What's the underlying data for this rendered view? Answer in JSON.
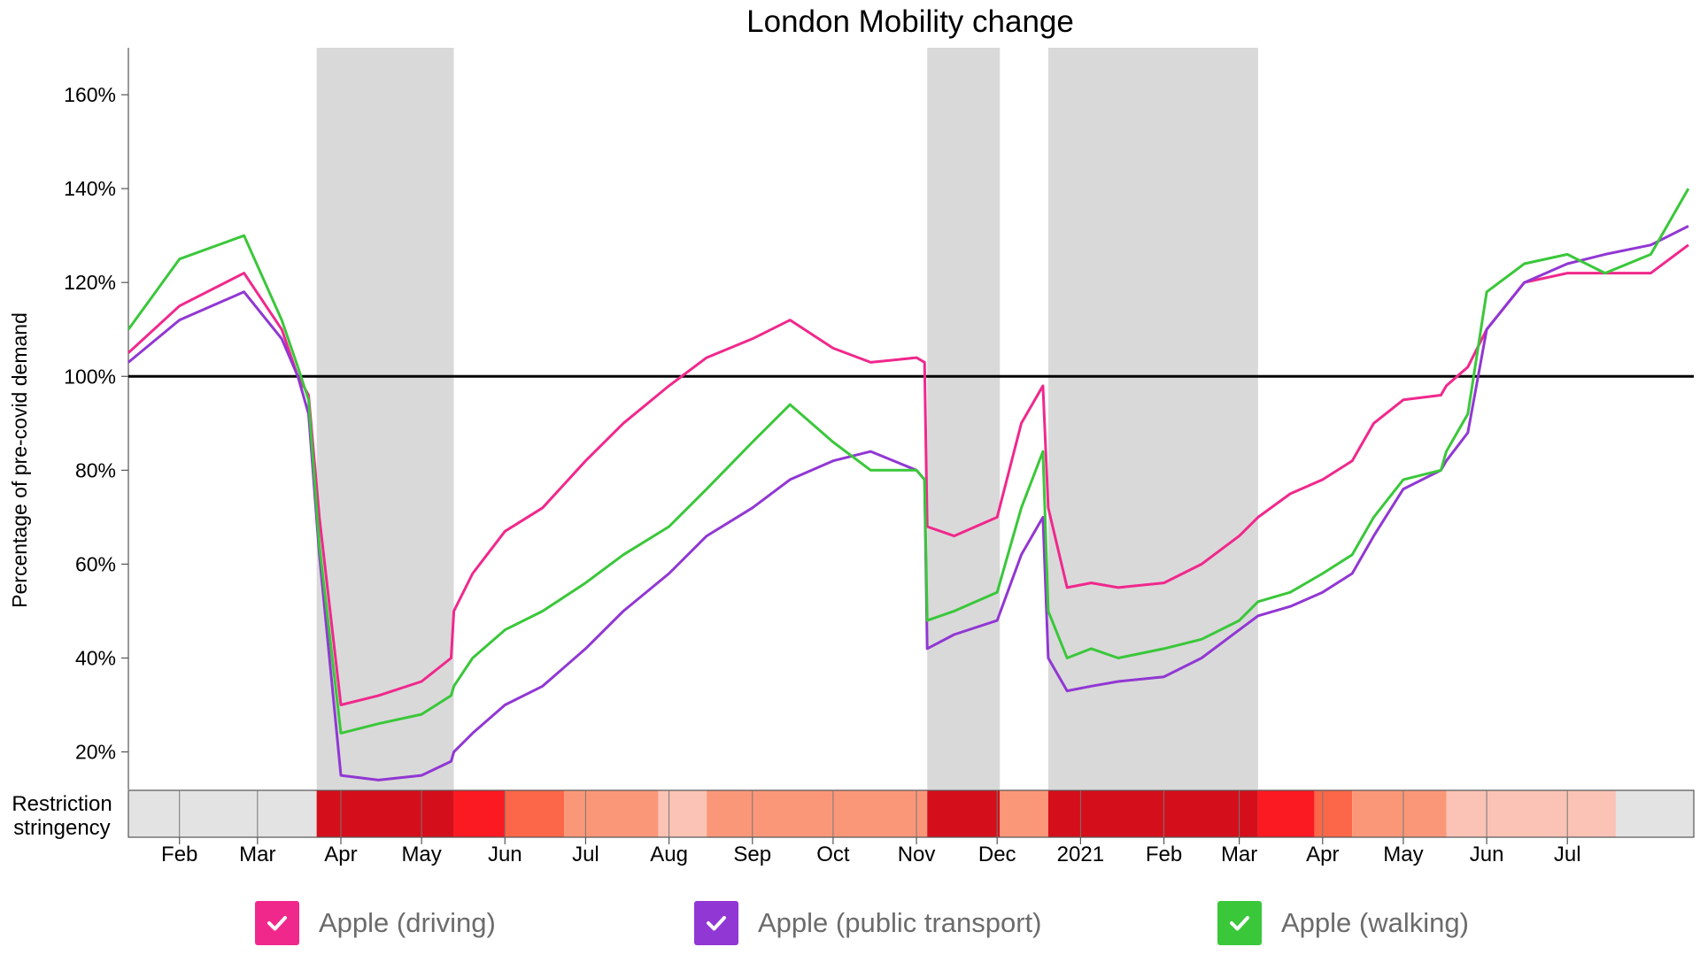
{
  "colors": {
    "driving": "#f0288c",
    "transit": "#9137d3",
    "walking": "#3ac73a",
    "lockdown_shade": "#d9d9d9",
    "baseline": "#000000",
    "stringency_levels": [
      "#e3e3e3",
      "#fbc3b5",
      "#fb9779",
      "#fb6748",
      "#fb1a22",
      "#d40f1b"
    ]
  },
  "chart_data": {
    "type": "line",
    "title": "London Mobility change",
    "ylabel": "Percentage of pre-covid demand",
    "ylim": [
      12,
      170
    ],
    "yticks": [
      20,
      40,
      60,
      80,
      100,
      120,
      140,
      160
    ],
    "ytick_labels": [
      "20%",
      "40%",
      "60%",
      "80%",
      "100%",
      "120%",
      "140%",
      "160%"
    ],
    "baseline": 100,
    "xlim": [
      "2020-01-13",
      "2021-08-17"
    ],
    "xtick_labels": [
      {
        "date": "2020-02-01",
        "label": "Feb"
      },
      {
        "date": "2020-03-01",
        "label": "Mar"
      },
      {
        "date": "2020-04-01",
        "label": "Apr"
      },
      {
        "date": "2020-05-01",
        "label": "May"
      },
      {
        "date": "2020-06-01",
        "label": "Jun"
      },
      {
        "date": "2020-07-01",
        "label": "Jul"
      },
      {
        "date": "2020-08-01",
        "label": "Aug"
      },
      {
        "date": "2020-09-01",
        "label": "Sep"
      },
      {
        "date": "2020-10-01",
        "label": "Oct"
      },
      {
        "date": "2020-11-01",
        "label": "Nov"
      },
      {
        "date": "2020-12-01",
        "label": "Dec"
      },
      {
        "date": "2021-01-01",
        "label": "2021"
      },
      {
        "date": "2021-02-01",
        "label": "Feb"
      },
      {
        "date": "2021-03-01",
        "label": "Mar"
      },
      {
        "date": "2021-04-01",
        "label": "Apr"
      },
      {
        "date": "2021-05-01",
        "label": "May"
      },
      {
        "date": "2021-06-01",
        "label": "Jun"
      },
      {
        "date": "2021-07-01",
        "label": "Jul"
      }
    ],
    "lockdowns": [
      {
        "start": "2020-03-23",
        "end": "2020-05-13"
      },
      {
        "start": "2020-11-05",
        "end": "2020-12-02"
      },
      {
        "start": "2020-12-20",
        "end": "2021-03-08"
      }
    ],
    "stringency_label": [
      "Restriction",
      "stringency"
    ],
    "stringency": [
      {
        "start": "2020-01-13",
        "end": "2020-03-23",
        "level": 0
      },
      {
        "start": "2020-03-23",
        "end": "2020-05-13",
        "level": 5
      },
      {
        "start": "2020-05-13",
        "end": "2020-06-01",
        "level": 4
      },
      {
        "start": "2020-06-01",
        "end": "2020-06-23",
        "level": 3
      },
      {
        "start": "2020-06-23",
        "end": "2020-07-28",
        "level": 2
      },
      {
        "start": "2020-07-28",
        "end": "2020-08-15",
        "level": 1
      },
      {
        "start": "2020-08-15",
        "end": "2020-11-05",
        "level": 2
      },
      {
        "start": "2020-11-05",
        "end": "2020-12-02",
        "level": 5
      },
      {
        "start": "2020-12-02",
        "end": "2020-12-20",
        "level": 2
      },
      {
        "start": "2020-12-20",
        "end": "2021-03-08",
        "level": 5
      },
      {
        "start": "2021-03-08",
        "end": "2021-03-29",
        "level": 4
      },
      {
        "start": "2021-03-29",
        "end": "2021-04-12",
        "level": 3
      },
      {
        "start": "2021-04-12",
        "end": "2021-05-17",
        "level": 2
      },
      {
        "start": "2021-05-17",
        "end": "2021-07-19",
        "level": 1
      },
      {
        "start": "2021-07-19",
        "end": "2021-08-17",
        "level": 0
      }
    ],
    "series": [
      {
        "name": "Apple (driving)",
        "key": "driving",
        "x": [
          "2020-01-13",
          "2020-02-01",
          "2020-02-25",
          "2020-03-10",
          "2020-03-16",
          "2020-03-20",
          "2020-03-24",
          "2020-04-01",
          "2020-04-15",
          "2020-05-01",
          "2020-05-12",
          "2020-05-13",
          "2020-05-20",
          "2020-06-01",
          "2020-06-15",
          "2020-07-01",
          "2020-07-15",
          "2020-08-01",
          "2020-08-15",
          "2020-09-01",
          "2020-09-15",
          "2020-10-01",
          "2020-10-15",
          "2020-11-01",
          "2020-11-04",
          "2020-11-05",
          "2020-11-15",
          "2020-12-01",
          "2020-12-10",
          "2020-12-18",
          "2020-12-20",
          "2020-12-27",
          "2021-01-05",
          "2021-01-15",
          "2021-02-01",
          "2021-02-15",
          "2021-03-01",
          "2021-03-08",
          "2021-03-20",
          "2021-04-01",
          "2021-04-12",
          "2021-04-20",
          "2021-05-01",
          "2021-05-15",
          "2021-05-17",
          "2021-05-25",
          "2021-06-01",
          "2021-06-15",
          "2021-07-01",
          "2021-07-15",
          "2021-08-01",
          "2021-08-15"
        ],
        "y": [
          105,
          115,
          122,
          110,
          100,
          96,
          70,
          30,
          32,
          35,
          40,
          50,
          58,
          67,
          72,
          82,
          90,
          98,
          104,
          108,
          112,
          106,
          103,
          104,
          103,
          68,
          66,
          70,
          90,
          98,
          72,
          55,
          56,
          55,
          56,
          60,
          66,
          70,
          75,
          78,
          82,
          90,
          95,
          96,
          98,
          102,
          110,
          120,
          122,
          122,
          122,
          128
        ]
      },
      {
        "name": "Apple (public transport)",
        "key": "transit",
        "x": [
          "2020-01-13",
          "2020-02-01",
          "2020-02-25",
          "2020-03-10",
          "2020-03-16",
          "2020-03-20",
          "2020-03-24",
          "2020-04-01",
          "2020-04-15",
          "2020-05-01",
          "2020-05-12",
          "2020-05-13",
          "2020-05-20",
          "2020-06-01",
          "2020-06-15",
          "2020-07-01",
          "2020-07-15",
          "2020-08-01",
          "2020-08-15",
          "2020-09-01",
          "2020-09-15",
          "2020-10-01",
          "2020-10-15",
          "2020-11-01",
          "2020-11-04",
          "2020-11-05",
          "2020-11-15",
          "2020-12-01",
          "2020-12-10",
          "2020-12-18",
          "2020-12-20",
          "2020-12-27",
          "2021-01-05",
          "2021-01-15",
          "2021-02-01",
          "2021-02-15",
          "2021-03-01",
          "2021-03-08",
          "2021-03-20",
          "2021-04-01",
          "2021-04-12",
          "2021-04-20",
          "2021-05-01",
          "2021-05-15",
          "2021-05-17",
          "2021-05-25",
          "2021-06-01",
          "2021-06-15",
          "2021-07-01",
          "2021-07-15",
          "2021-08-01",
          "2021-08-15"
        ],
        "y": [
          103,
          112,
          118,
          108,
          100,
          92,
          62,
          15,
          14,
          15,
          18,
          20,
          24,
          30,
          34,
          42,
          50,
          58,
          66,
          72,
          78,
          82,
          84,
          80,
          78,
          42,
          45,
          48,
          62,
          70,
          40,
          33,
          34,
          35,
          36,
          40,
          46,
          49,
          51,
          54,
          58,
          66,
          76,
          80,
          82,
          88,
          110,
          120,
          124,
          126,
          128,
          132
        ]
      },
      {
        "name": "Apple (walking)",
        "key": "walking",
        "x": [
          "2020-01-13",
          "2020-02-01",
          "2020-02-25",
          "2020-03-10",
          "2020-03-16",
          "2020-03-20",
          "2020-03-24",
          "2020-04-01",
          "2020-04-15",
          "2020-05-01",
          "2020-05-12",
          "2020-05-13",
          "2020-05-20",
          "2020-06-01",
          "2020-06-15",
          "2020-07-01",
          "2020-07-15",
          "2020-08-01",
          "2020-08-15",
          "2020-09-01",
          "2020-09-15",
          "2020-10-01",
          "2020-10-15",
          "2020-11-01",
          "2020-11-04",
          "2020-11-05",
          "2020-11-15",
          "2020-12-01",
          "2020-12-10",
          "2020-12-18",
          "2020-12-20",
          "2020-12-27",
          "2021-01-05",
          "2021-01-15",
          "2021-02-01",
          "2021-02-15",
          "2021-03-01",
          "2021-03-08",
          "2021-03-20",
          "2021-04-01",
          "2021-04-12",
          "2021-04-20",
          "2021-05-01",
          "2021-05-15",
          "2021-05-17",
          "2021-05-25",
          "2021-06-01",
          "2021-06-15",
          "2021-07-01",
          "2021-07-15",
          "2021-08-01",
          "2021-08-15"
        ],
        "y": [
          110,
          125,
          130,
          112,
          102,
          95,
          64,
          24,
          26,
          28,
          32,
          34,
          40,
          46,
          50,
          56,
          62,
          68,
          76,
          86,
          94,
          86,
          80,
          80,
          78,
          48,
          50,
          54,
          72,
          84,
          50,
          40,
          42,
          40,
          42,
          44,
          48,
          52,
          54,
          58,
          62,
          70,
          78,
          80,
          84,
          92,
          118,
          124,
          126,
          122,
          126,
          140
        ]
      }
    ],
    "legend": [
      "Apple (driving)",
      "Apple (public transport)",
      "Apple (walking)"
    ]
  }
}
